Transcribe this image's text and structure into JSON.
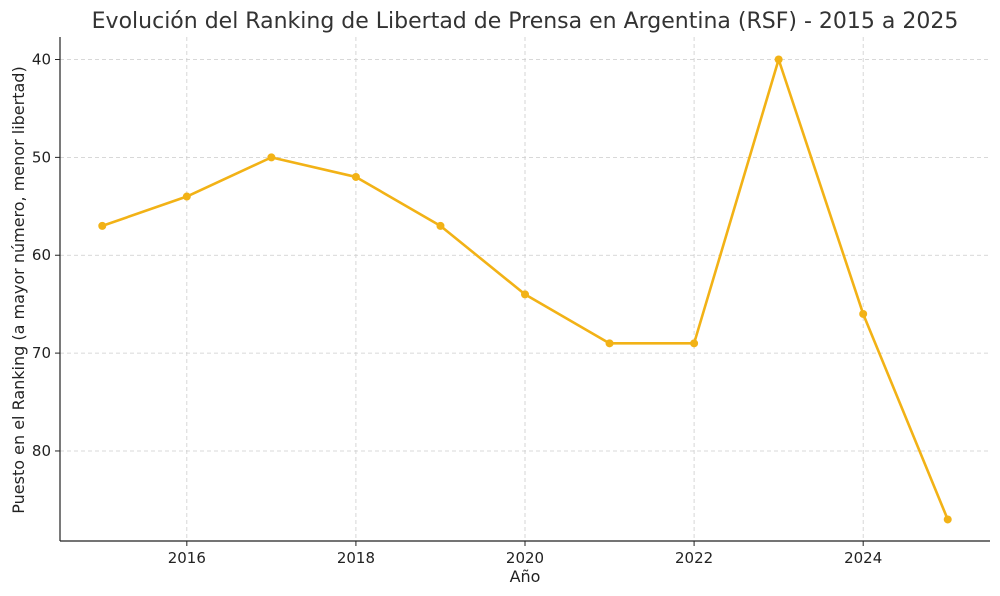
{
  "chart_data": {
    "type": "line",
    "title": "Evolución del Ranking de Libertad de Prensa en Argentina (RSF) - 2015 a 2025",
    "xlabel": "Año",
    "ylabel": "Puesto en el Ranking (a mayor número, menor libertad)",
    "x": [
      2015,
      2016,
      2017,
      2018,
      2019,
      2020,
      2021,
      2022,
      2023,
      2024,
      2025
    ],
    "series": [
      {
        "values": [
          57,
          54,
          50,
          52,
          57,
          64,
          69,
          69,
          40,
          66,
          87
        ],
        "color": "#f2b216"
      }
    ],
    "xlim": [
      2014.5,
      2025.5
    ],
    "ylim": [
      89.2,
      37.7
    ],
    "y_inverted": true,
    "x_ticks": [
      "2016",
      "2018",
      "2020",
      "2022",
      "2024"
    ],
    "y_ticks": [
      "40",
      "50",
      "60",
      "70",
      "80"
    ],
    "grid": true,
    "legend": "none"
  }
}
